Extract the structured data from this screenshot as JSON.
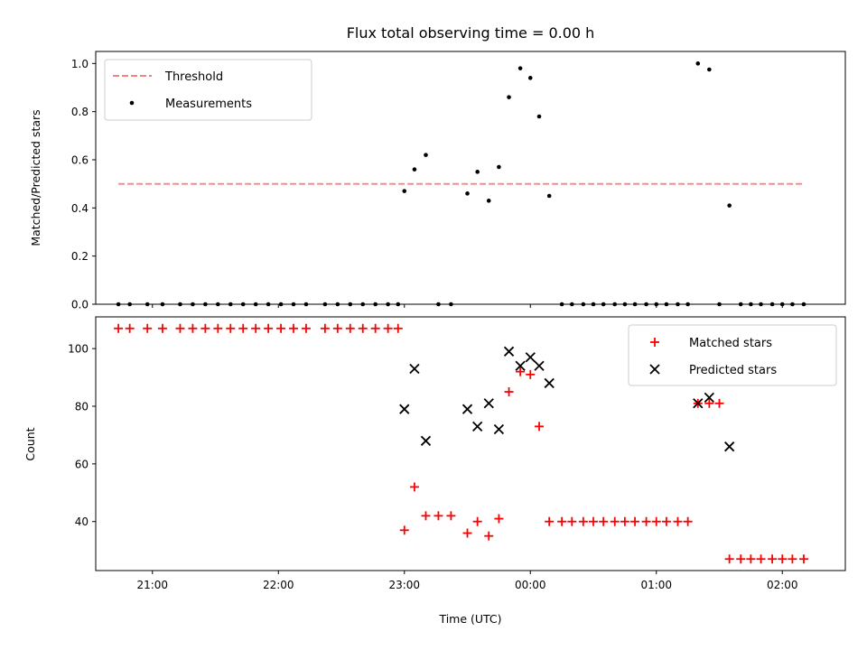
{
  "chart_data": [
    {
      "type": "scatter",
      "title": "Flux total observing time = 0.00 h",
      "ylabel": "Matched/Predicted stars",
      "xlabel": "",
      "xlim": [
        20.55,
        26.5
      ],
      "ylim": [
        0,
        1.05
      ],
      "yticks": [
        "0.0",
        "0.2",
        "0.4",
        "0.6",
        "0.8",
        "1.0"
      ],
      "ytick_values": [
        0,
        0.2,
        0.4,
        0.6,
        0.8,
        1.0
      ],
      "legend": {
        "position": "top-left",
        "threshold": "Threshold",
        "measurements": "Measurements"
      },
      "colors": {
        "threshold": "#ff7f7f",
        "measurements": "#000000"
      },
      "threshold": {
        "x": [
          20.73,
          26.17
        ],
        "y": 0.5
      },
      "series": [
        {
          "name": "Measurements",
          "x": [
            20.73,
            20.82,
            20.96,
            21.08,
            21.22,
            21.32,
            21.42,
            21.52,
            21.62,
            21.72,
            21.82,
            21.92,
            22.02,
            22.12,
            22.22,
            22.37,
            22.47,
            22.57,
            22.67,
            22.77,
            22.87,
            22.95,
            23.0,
            23.08,
            23.17,
            23.27,
            23.37,
            23.5,
            23.58,
            23.67,
            23.75,
            23.83,
            23.92,
            24.0,
            24.07,
            24.15,
            24.25,
            24.33,
            24.42,
            24.5,
            24.58,
            24.67,
            24.75,
            24.83,
            24.92,
            25.0,
            25.08,
            25.17,
            25.25,
            25.33,
            25.42,
            25.5,
            25.58,
            25.67,
            25.75,
            25.83,
            25.92,
            26.0,
            26.08,
            26.17
          ],
          "y": [
            0,
            0,
            0,
            0,
            0,
            0,
            0,
            0,
            0,
            0,
            0,
            0,
            0,
            0,
            0,
            0,
            0,
            0,
            0,
            0,
            0,
            0,
            0.47,
            0.56,
            0.62,
            0,
            0,
            0.46,
            0.55,
            0.43,
            0.57,
            0.86,
            0.98,
            0.94,
            0.78,
            0.45,
            0,
            0,
            0,
            0,
            0,
            0,
            0,
            0,
            0,
            0,
            0,
            0,
            0,
            1.0,
            0.975,
            0,
            0.41,
            0,
            0,
            0,
            0,
            0,
            0,
            0
          ]
        }
      ]
    },
    {
      "type": "scatter",
      "title": "",
      "ylabel": "Count",
      "xlabel": "Time (UTC)",
      "xlim": [
        20.55,
        26.5
      ],
      "ylim": [
        23,
        111
      ],
      "yticks": [
        "40",
        "60",
        "80",
        "100"
      ],
      "ytick_values": [
        40,
        60,
        80,
        100
      ],
      "xticks": [
        "21:00",
        "22:00",
        "23:00",
        "00:00",
        "01:00",
        "02:00"
      ],
      "xtick_values": [
        21,
        22,
        23,
        24,
        25,
        26
      ],
      "legend": {
        "position": "top-right",
        "matched": "Matched stars",
        "predicted": "Predicted stars"
      },
      "colors": {
        "matched": "#ff0000",
        "predicted": "#000000"
      },
      "series": [
        {
          "name": "Matched stars",
          "x": [
            20.73,
            20.82,
            20.96,
            21.08,
            21.22,
            21.32,
            21.42,
            21.52,
            21.62,
            21.72,
            21.82,
            21.92,
            22.02,
            22.12,
            22.22,
            22.37,
            22.47,
            22.57,
            22.67,
            22.77,
            22.87,
            22.95,
            23.0,
            23.08,
            23.17,
            23.27,
            23.37,
            23.5,
            23.58,
            23.67,
            23.75,
            23.83,
            23.92,
            24.0,
            24.07,
            24.15,
            24.25,
            24.33,
            24.42,
            24.5,
            24.58,
            24.67,
            24.75,
            24.83,
            24.92,
            25.0,
            25.08,
            25.17,
            25.25,
            25.33,
            25.42,
            25.5,
            25.58,
            25.67,
            25.75,
            25.83,
            25.92,
            26.0,
            26.08,
            26.17
          ],
          "y": [
            107,
            107,
            107,
            107,
            107,
            107,
            107,
            107,
            107,
            107,
            107,
            107,
            107,
            107,
            107,
            107,
            107,
            107,
            107,
            107,
            107,
            107,
            37,
            52,
            42,
            42,
            42,
            36,
            40,
            35,
            41,
            85,
            92,
            91,
            73,
            40,
            40,
            40,
            40,
            40,
            40,
            40,
            40,
            40,
            40,
            40,
            40,
            40,
            40,
            81,
            81,
            81,
            27,
            27,
            27,
            27,
            27,
            27,
            27,
            27
          ]
        },
        {
          "name": "Predicted stars",
          "x": [
            23.0,
            23.08,
            23.17,
            23.5,
            23.58,
            23.67,
            23.75,
            23.83,
            23.92,
            24.0,
            24.07,
            24.15,
            25.33,
            25.42,
            25.58
          ],
          "y": [
            79,
            93,
            68,
            79,
            73,
            81,
            72,
            99,
            94,
            97,
            94,
            88,
            81,
            83,
            66
          ]
        }
      ]
    }
  ]
}
